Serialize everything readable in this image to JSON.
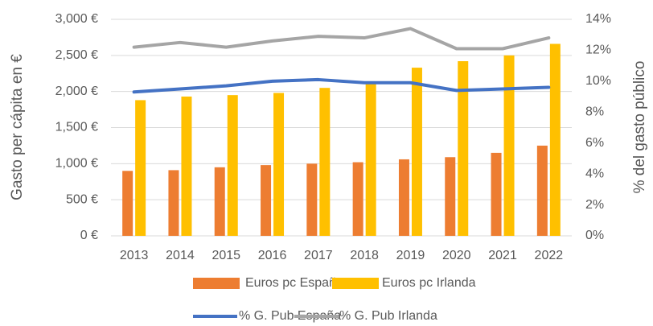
{
  "chart_data": {
    "type": "bar_line",
    "categories": [
      "2013",
      "2014",
      "2015",
      "2016",
      "2017",
      "2018",
      "2019",
      "2020",
      "2021",
      "2022"
    ],
    "series": [
      {
        "name": "Euros pc España",
        "color": "#ed7d31",
        "kind": "bar",
        "values": [
          900,
          910,
          950,
          980,
          1000,
          1020,
          1060,
          1090,
          1150,
          1250
        ]
      },
      {
        "name": "Euros pc Irlanda",
        "color": "#ffc000",
        "kind": "bar",
        "values": [
          1880,
          1930,
          1950,
          1980,
          2050,
          2140,
          2330,
          2420,
          2500,
          2660
        ]
      },
      {
        "name": "% G. Pub España",
        "color": "#4472c4",
        "kind": "line",
        "axis": "y2",
        "values": [
          9.3,
          9.5,
          9.7,
          10.0,
          10.1,
          9.9,
          9.9,
          9.4,
          9.5,
          9.6
        ]
      },
      {
        "name": "% G. Pub Irlanda",
        "color": "#a5a5a5",
        "kind": "line",
        "axis": "y2",
        "values": [
          12.2,
          12.5,
          12.2,
          12.6,
          12.9,
          12.8,
          13.4,
          12.1,
          12.1,
          12.8
        ]
      }
    ],
    "ylabel": "Gasto per cápita en €",
    "y2label": "% del gasto público",
    "ylim": [
      0,
      3000
    ],
    "yticks": [
      {
        "value": 0,
        "label": "0 €"
      },
      {
        "value": 500,
        "label": "500 €"
      },
      {
        "value": 1000,
        "label": "1,000 €"
      },
      {
        "value": 1500,
        "label": "1,500 €"
      },
      {
        "value": 2000,
        "label": "2,000 €"
      },
      {
        "value": 2500,
        "label": "2,500 €"
      },
      {
        "value": 3000,
        "label": "3,000 €"
      }
    ],
    "y2lim": [
      0,
      14
    ],
    "y2ticks": [
      {
        "value": 0,
        "label": "0%"
      },
      {
        "value": 2,
        "label": "2%"
      },
      {
        "value": 4,
        "label": "4%"
      },
      {
        "value": 6,
        "label": "6%"
      },
      {
        "value": 8,
        "label": "8%"
      },
      {
        "value": 10,
        "label": "10%"
      },
      {
        "value": 12,
        "label": "12%"
      },
      {
        "value": 14,
        "label": "14%"
      }
    ],
    "grid": true,
    "legend": "bottom"
  }
}
